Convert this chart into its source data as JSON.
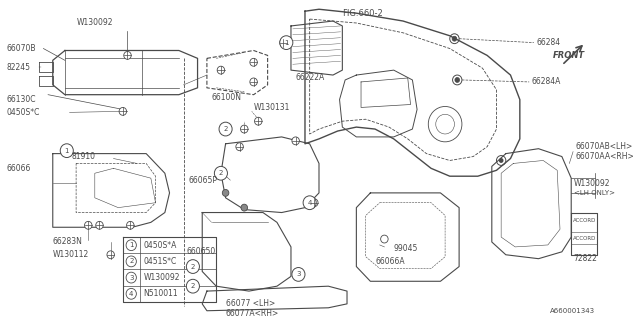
{
  "fig_label": "FIG.660-2",
  "doc_number": "A660001343",
  "background_color": "#ffffff",
  "line_color": "#4a4a4a",
  "legend": [
    {
      "num": "1",
      "code": "0450S*A"
    },
    {
      "num": "2",
      "code": "0451S*C"
    },
    {
      "num": "3",
      "code": "W130092"
    },
    {
      "num": "4",
      "code": "N510011"
    }
  ],
  "font_size": 5.5
}
